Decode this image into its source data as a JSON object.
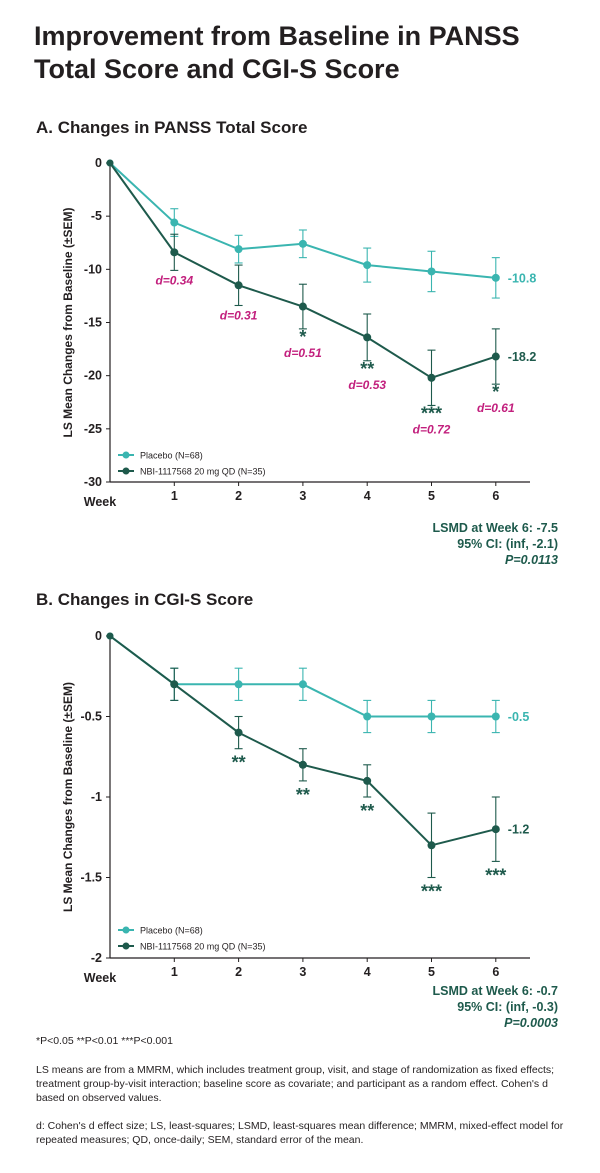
{
  "title": "Improvement from Baseline in PANSS Total Score and CGI-S Score",
  "chart_data": [
    {
      "type": "line",
      "title": "A. Changes in PANSS Total Score",
      "xlabel": "Week",
      "ylabel": "LS Mean Changes from Baseline (±SEM)",
      "x": [
        0,
        1,
        2,
        3,
        4,
        5,
        6
      ],
      "x_tick_labels": [
        "1",
        "2",
        "3",
        "4",
        "5",
        "6"
      ],
      "ylim": [
        -30,
        0
      ],
      "y_ticks": [
        0,
        -5,
        -10,
        -15,
        -20,
        -25,
        -30
      ],
      "y_tick_labels": [
        "0",
        "-5",
        "-10",
        "-15",
        "-20",
        "-25",
        "-30"
      ],
      "legend": "bottom-left",
      "series": [
        {
          "name": "Placebo (N=68)",
          "color": "#3ab5b0",
          "values": [
            0,
            -5.6,
            -8.1,
            -7.6,
            -9.6,
            -10.2,
            -10.8
          ],
          "err": [
            0,
            1.3,
            1.3,
            1.3,
            1.6,
            1.9,
            1.9
          ],
          "end_label": "-10.8"
        },
        {
          "name": "NBI-1117568 20 mg QD (N=35)",
          "color": "#1e5a4c",
          "values": [
            0,
            -8.4,
            -11.5,
            -13.5,
            -16.4,
            -20.2,
            -18.2
          ],
          "err": [
            0,
            1.7,
            1.9,
            2.1,
            2.2,
            2.6,
            2.6
          ],
          "end_label": "-18.2"
        }
      ],
      "significance": [
        "",
        "",
        "",
        "*",
        "**",
        "***",
        "*"
      ],
      "effect_sizes": [
        "",
        "d=0.34",
        "d=0.31",
        "d=0.51",
        "d=0.53",
        "d=0.72",
        "d=0.61"
      ],
      "lsmd": [
        "LSMD at Week 6: -7.5",
        "95% CI: (inf, -2.1)",
        "P=0.0113"
      ]
    },
    {
      "type": "line",
      "title": "B. Changes in CGI-S Score",
      "xlabel": "Week",
      "ylabel": "LS Mean Changes from Baseline (±SEM)",
      "x": [
        0,
        1,
        2,
        3,
        4,
        5,
        6
      ],
      "x_tick_labels": [
        "1",
        "2",
        "3",
        "4",
        "5",
        "6"
      ],
      "ylim": [
        -2,
        0
      ],
      "y_ticks": [
        0,
        -0.5,
        -1,
        -1.5,
        -2
      ],
      "y_tick_labels": [
        "0",
        "-0.5",
        "-1",
        "-1.5",
        "-2"
      ],
      "legend": "bottom-left",
      "series": [
        {
          "name": "Placebo (N=68)",
          "color": "#3ab5b0",
          "values": [
            0,
            -0.3,
            -0.3,
            -0.3,
            -0.5,
            -0.5,
            -0.5
          ],
          "err": [
            0,
            0.1,
            0.1,
            0.1,
            0.1,
            0.1,
            0.1
          ],
          "end_label": "-0.5"
        },
        {
          "name": "NBI-1117568 20 mg QD (N=35)",
          "color": "#1e5a4c",
          "values": [
            0,
            -0.3,
            -0.6,
            -0.8,
            -0.9,
            -1.3,
            -1.2
          ],
          "err": [
            0,
            0.1,
            0.1,
            0.1,
            0.1,
            0.2,
            0.2
          ],
          "end_label": "-1.2"
        }
      ],
      "significance": [
        "",
        "",
        "**",
        "**",
        "**",
        "***",
        "***"
      ],
      "effect_sizes": [],
      "lsmd": [
        "LSMD at Week 6: -0.7",
        "95% CI: (inf, -0.3)",
        "P=0.0003"
      ]
    }
  ],
  "footnotes": {
    "significance": "*P<0.05 **P<0.01 ***P<0.001",
    "ls_means": "LS means are from a MMRM, which includes treatment group, visit, and stage of randomization as fixed effects; treatment group-by-visit interaction; baseline score as covariate; and participant as a random effect. Cohen's d based on observed values.",
    "abbreviations": "d: Cohen's d effect size; LS, least-squares; LSMD, least-squares mean difference; MMRM, mixed-effect model for repeated measures; QD, once-daily; SEM, standard error of the mean."
  }
}
